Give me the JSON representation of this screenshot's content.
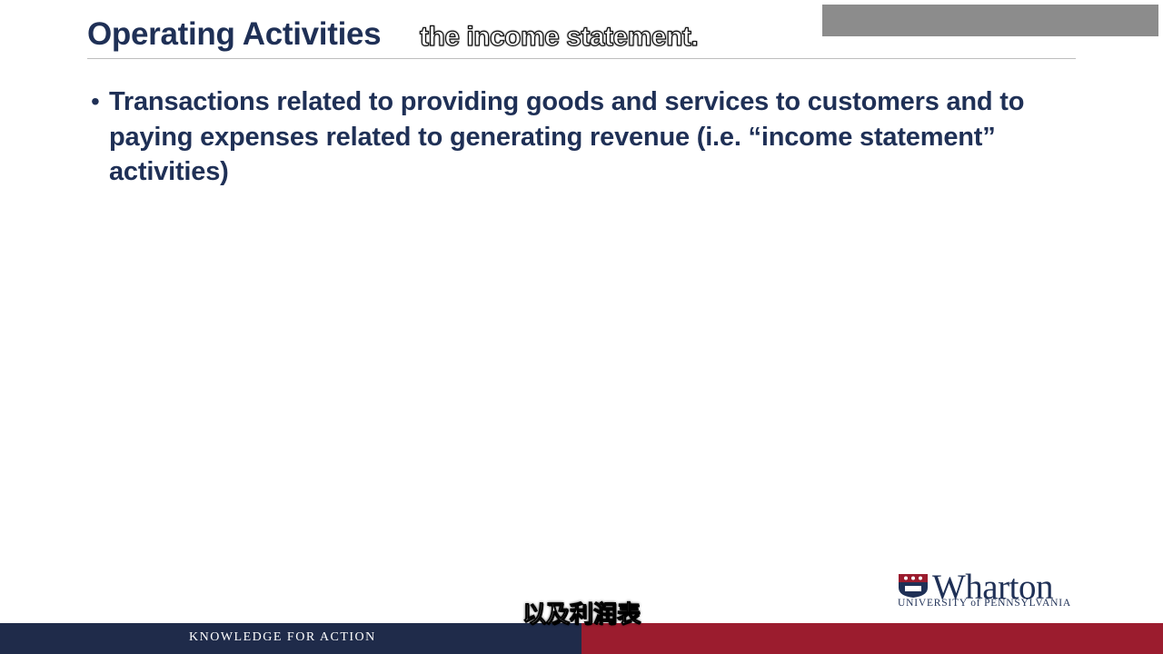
{
  "slide": {
    "title": "Operating Activities",
    "bullets": [
      "Transactions related to providing goods and services to customers and to paying expenses related to generating revenue (i.e. “income statement” activities)"
    ]
  },
  "captions": {
    "english": "the income statement.",
    "chinese": "以及利润表"
  },
  "branding": {
    "logo_word": "Wharton",
    "university_line": "UNIVERSITY of PENNSYLVANIA",
    "tagline": "KNOWLEDGE FOR ACTION"
  },
  "colors": {
    "navy": "#1f2b4a",
    "crimson": "#9b1c2e",
    "title_text": "#1f3056"
  }
}
